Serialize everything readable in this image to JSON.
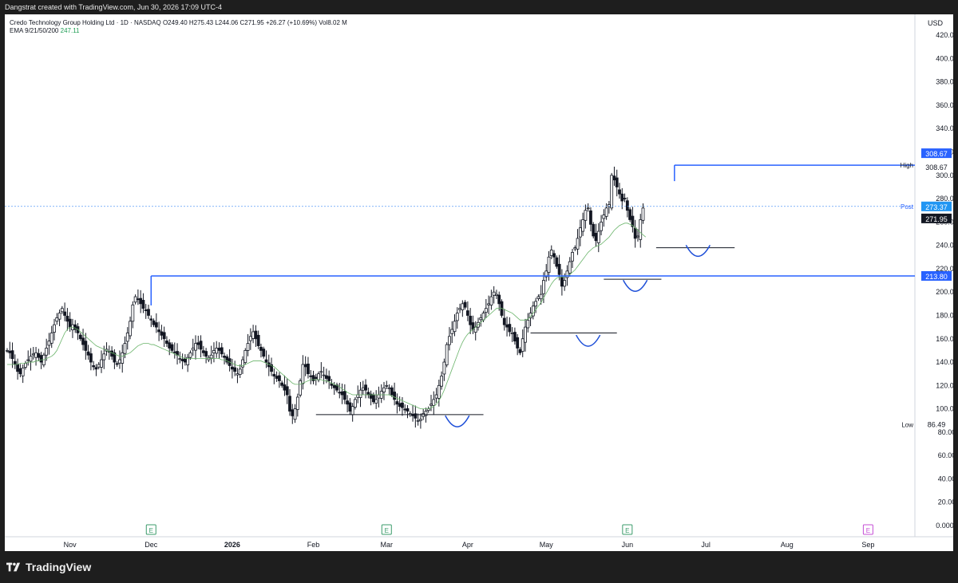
{
  "header": {
    "credit": "Dangstrat created with TradingView.com, Jun 30, 2026 17:09 UTC-4",
    "symbol_line": "Credo Technology Group Holding Ltd · 1D · NASDAQ  O249.40  H275.43  L244.06  C271.95  +26.27 (+10.69%)  Vol8.02 M",
    "ema_label": "EMA 9/21/50/200",
    "ema_value": "247.11"
  },
  "footer": {
    "brand": "TradingView"
  },
  "colors": {
    "candle": "#131722",
    "ema": "#6ab46a",
    "level": "#2962ff",
    "annotation": "#1e4fd8",
    "earnings": "#3a9b6a",
    "earnings_future": "#c44dd6"
  },
  "chart_data": {
    "type": "candlestick",
    "currency": "USD",
    "ylim": [
      0,
      432
    ],
    "ytick_labels": [
      "420.00",
      "400.00",
      "380.00",
      "360.00",
      "340.00",
      "320.00",
      "300.00",
      "280.00",
      "260.00",
      "240.00",
      "220.00",
      "200.00",
      "180.00",
      "160.00",
      "140.00",
      "120.00",
      "100.00",
      "80.00",
      "60.00",
      "40.00",
      "20.00",
      "0.0000"
    ],
    "ytick_values": [
      420,
      400,
      380,
      360,
      340,
      320,
      300,
      280,
      260,
      240,
      220,
      200,
      180,
      160,
      140,
      120,
      100,
      80,
      60,
      40,
      20,
      0
    ],
    "month_labels": [
      "Nov",
      "Dec",
      "2026",
      "Feb",
      "Mar",
      "Apr",
      "May",
      "Jun",
      "Jul",
      "Aug",
      "Sep"
    ],
    "month_days": [
      24,
      55,
      86,
      117,
      145,
      176,
      206,
      237,
      267,
      298,
      329
    ],
    "last_day": 267,
    "ohlc_closes": [
      150,
      148,
      143,
      138,
      132,
      130,
      135,
      139,
      142,
      145,
      147,
      148,
      144,
      140,
      146,
      152,
      158,
      165,
      172,
      178,
      182,
      186,
      180,
      175,
      170,
      172,
      168,
      165,
      160,
      155,
      150,
      146,
      140,
      136,
      134,
      138,
      142,
      147,
      151,
      149,
      145,
      140,
      138,
      142,
      148,
      156,
      165,
      175,
      189,
      196,
      194,
      190,
      186,
      184,
      180,
      176,
      172,
      170,
      166,
      163,
      160,
      156,
      152,
      150,
      148,
      146,
      143,
      141,
      140,
      144,
      148,
      152,
      156,
      155,
      151,
      148,
      145,
      144,
      146,
      150,
      152,
      150,
      147,
      144,
      140,
      137,
      134,
      132,
      130,
      134,
      142,
      150,
      156,
      162,
      166,
      160,
      154,
      150,
      145,
      140,
      136,
      132,
      128,
      126,
      124,
      120,
      116,
      112,
      98,
      94,
      100,
      110,
      124,
      138,
      136,
      130,
      128,
      124,
      126,
      130,
      132,
      129,
      126,
      124,
      120,
      118,
      116,
      114,
      112,
      108,
      104,
      98,
      102,
      108,
      112,
      116,
      118,
      116,
      112,
      109,
      106,
      108,
      112,
      115,
      118,
      120,
      118,
      112,
      108,
      104,
      102,
      101,
      99,
      98,
      96,
      94,
      92,
      90,
      91,
      96,
      98,
      100,
      104,
      108,
      112,
      120,
      128,
      140,
      155,
      162,
      168,
      175,
      182,
      186,
      190,
      187,
      180,
      172,
      168,
      170,
      174,
      178,
      182,
      186,
      190,
      196,
      200,
      198,
      190,
      180,
      172,
      170,
      166,
      165,
      158,
      152,
      148,
      160,
      170,
      176,
      182,
      188,
      192,
      196,
      198,
      210,
      218,
      230,
      236,
      230,
      222,
      215,
      205,
      210,
      218,
      226,
      234,
      238,
      246,
      255,
      262,
      270,
      272,
      258,
      248,
      244,
      252,
      260,
      266,
      272,
      275,
      300,
      296,
      290,
      284,
      278,
      280,
      270,
      262,
      256,
      246,
      248,
      262,
      271.95
    ],
    "ema_values": [
      138,
      138,
      138,
      138,
      138,
      139,
      139,
      139,
      140,
      140,
      140,
      141,
      141,
      142,
      142,
      143,
      144,
      145,
      147,
      150,
      155,
      160,
      165,
      168,
      170,
      170,
      169,
      168,
      166,
      164,
      162,
      160,
      158,
      156,
      154,
      153,
      152,
      151,
      150,
      149,
      148,
      147,
      146,
      145,
      145,
      146,
      147,
      148,
      150,
      152,
      154,
      155,
      156,
      156,
      156,
      155,
      155,
      154,
      153,
      152,
      151,
      150,
      149,
      148,
      147,
      146,
      145,
      144,
      143,
      143,
      143,
      143,
      143,
      143,
      143,
      143,
      143,
      143,
      143,
      143,
      143,
      143,
      142,
      142,
      141,
      140,
      139,
      138,
      137,
      137,
      137,
      138,
      139,
      140,
      141,
      141,
      141,
      141,
      140,
      139,
      138,
      137,
      136,
      134,
      132,
      130,
      128,
      126,
      124,
      122,
      121,
      121,
      121,
      122,
      123,
      124,
      125,
      125,
      125,
      125,
      125,
      124,
      124,
      123,
      122,
      121,
      120,
      119,
      117,
      116,
      114,
      113,
      112,
      112,
      112,
      112,
      112,
      112,
      112,
      112,
      112,
      112,
      112,
      112,
      112,
      112,
      112,
      111,
      110,
      109,
      108,
      107,
      106,
      105,
      104,
      103,
      102,
      101,
      100,
      100,
      100,
      100,
      101,
      102,
      104,
      107,
      111,
      116,
      122,
      128,
      134,
      140,
      146,
      152,
      157,
      161,
      164,
      166,
      168,
      170,
      172,
      174,
      176,
      178,
      180,
      182,
      184,
      186,
      186,
      186,
      185,
      184,
      183,
      182,
      180,
      178,
      176,
      176,
      176,
      177,
      179,
      182,
      185,
      188,
      191,
      195,
      199,
      203,
      207,
      210,
      212,
      213,
      213,
      213,
      214,
      215,
      217,
      219,
      222,
      225,
      228,
      231,
      234,
      236,
      238,
      239,
      240,
      241,
      243,
      245,
      247,
      250,
      253,
      255,
      257,
      258,
      259,
      259,
      258,
      257,
      255,
      253,
      251,
      249,
      247.11
    ],
    "high": {
      "label": "High",
      "value": "308.67"
    },
    "low": {
      "label": "Low",
      "value": "86.49"
    },
    "post": {
      "label": "Post",
      "value": "273.37"
    },
    "last": {
      "value": "271.95"
    },
    "level_value": "213.80",
    "level_price": 213.8,
    "high_badge_value": "308.67",
    "earnings_days": [
      55,
      145,
      237,
      329
    ]
  }
}
